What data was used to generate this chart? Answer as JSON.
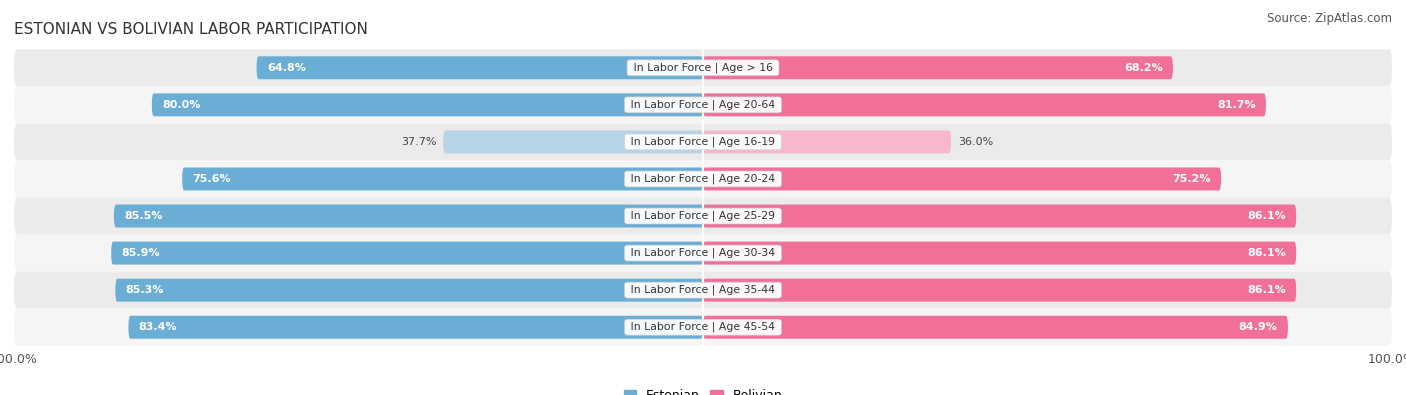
{
  "title": "ESTONIAN VS BOLIVIAN LABOR PARTICIPATION",
  "source": "Source: ZipAtlas.com",
  "categories": [
    "In Labor Force | Age > 16",
    "In Labor Force | Age 20-64",
    "In Labor Force | Age 16-19",
    "In Labor Force | Age 20-24",
    "In Labor Force | Age 25-29",
    "In Labor Force | Age 30-34",
    "In Labor Force | Age 35-44",
    "In Labor Force | Age 45-54"
  ],
  "estonian": [
    64.8,
    80.0,
    37.7,
    75.6,
    85.5,
    85.9,
    85.3,
    83.4
  ],
  "bolivian": [
    68.2,
    81.7,
    36.0,
    75.2,
    86.1,
    86.1,
    86.1,
    84.9
  ],
  "estonian_color": "#6aaed6",
  "estonian_color_light": "#b8d4e8",
  "bolivian_color": "#f07098",
  "bolivian_color_light": "#f5b8cc",
  "bg_color": "#ffffff",
  "row_bg_light": "#f0f0f0",
  "row_bg_mid": "#e0e0e0",
  "max_val": 100.0,
  "bar_height": 0.62,
  "figsize": [
    14.06,
    3.95
  ],
  "dpi": 100
}
